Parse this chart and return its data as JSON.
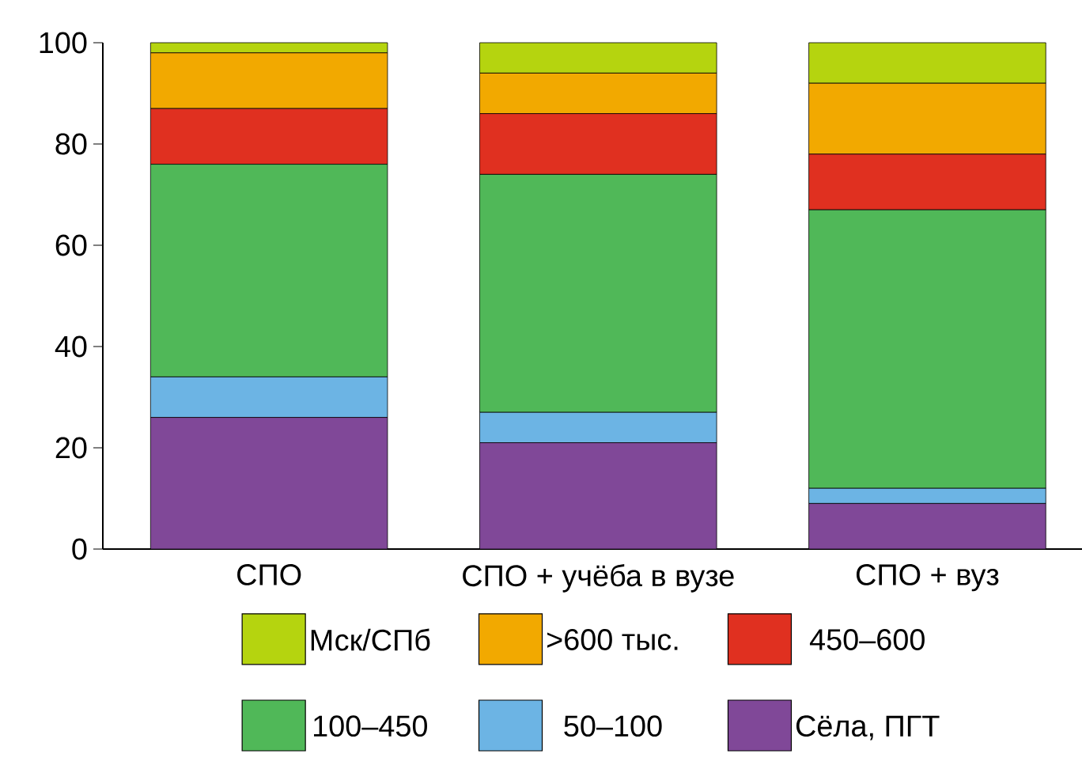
{
  "chart_data": {
    "type": "bar",
    "stacked": true,
    "categories": [
      "СПО",
      "СПО + учёба в вузе",
      "СПО + вуз"
    ],
    "series": [
      {
        "name": "Сёла, ПГТ",
        "color": "#804898",
        "values": [
          26,
          21,
          9
        ]
      },
      {
        "name": "50–100",
        "color": "#6cb4e4",
        "values": [
          8,
          6,
          3
        ]
      },
      {
        "name": "100–450",
        "color": "#50b858",
        "values": [
          42,
          47,
          55
        ]
      },
      {
        "name": "450–600",
        "color": "#e03020",
        "values": [
          11,
          12,
          11
        ]
      },
      {
        "name": ">600 тыс.",
        "color": "#f2a900",
        "values": [
          11,
          8,
          14
        ]
      },
      {
        "name": "Мск/СПб",
        "color": "#b5d40f",
        "values": [
          2,
          6,
          8
        ]
      }
    ],
    "ylim": [
      0,
      100
    ],
    "yticks": [
      0,
      20,
      40,
      60,
      80,
      100
    ],
    "legend": "bottom"
  }
}
